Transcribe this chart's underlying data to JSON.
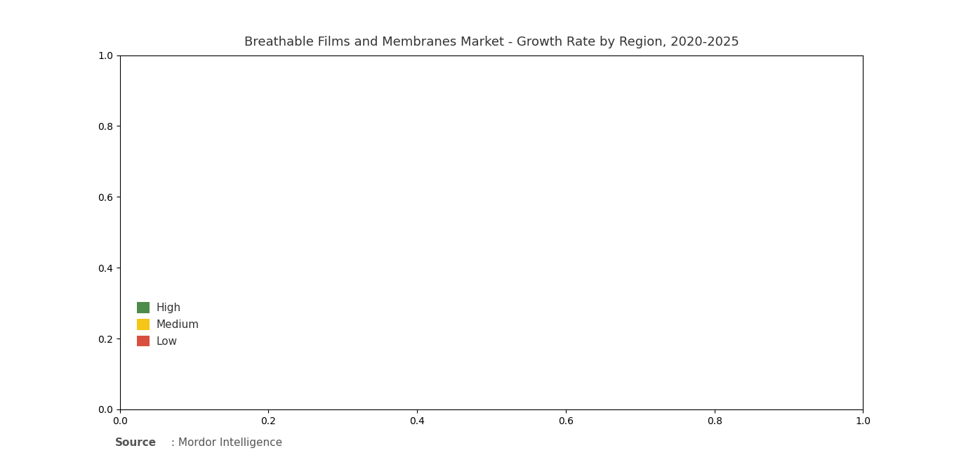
{
  "title": "Breathable Films and Membranes Market - Growth Rate by Region, 2020-2025",
  "title_fontsize": 13,
  "background_color": "#ffffff",
  "legend": {
    "High": "#4d8b4d",
    "Medium": "#f5c518",
    "Low": "#d94f3d"
  },
  "color_map": {
    "High": "#4d8b4d",
    "Medium": "#f5c518",
    "Low": "#d94f3d",
    "Gray": "#aaaaaa",
    "Default": "#e8e8e8"
  },
  "country_colors": {
    "United States of America": "Medium",
    "Canada": "Medium",
    "Mexico": "Medium",
    "Guatemala": "Low",
    "Belize": "Low",
    "Honduras": "Low",
    "El Salvador": "Low",
    "Nicaragua": "Low",
    "Costa Rica": "Low",
    "Panama": "Low",
    "Cuba": "Low",
    "Jamaica": "Low",
    "Haiti": "Low",
    "Dominican Republic": "Low",
    "Puerto Rico": "Low",
    "Colombia": "Low",
    "Venezuela": "Low",
    "Guyana": "Low",
    "Suriname": "Low",
    "French Guiana": "Low",
    "Ecuador": "Low",
    "Peru": "Low",
    "Brazil": "Low",
    "Bolivia": "Low",
    "Paraguay": "Low",
    "Chile": "Low",
    "Argentina": "Low",
    "Uruguay": "Low",
    "Trinidad and Tobago": "Low",
    "Iceland": "Medium",
    "Norway": "Medium",
    "Sweden": "Medium",
    "Finland": "Medium",
    "Denmark": "Medium",
    "United Kingdom": "Medium",
    "Ireland": "Medium",
    "Netherlands": "Medium",
    "Belgium": "Medium",
    "Luxembourg": "Medium",
    "France": "Medium",
    "Spain": "Medium",
    "Portugal": "Medium",
    "Germany": "Medium",
    "Switzerland": "Medium",
    "Austria": "Medium",
    "Italy": "Medium",
    "Greece": "Medium",
    "Cyprus": "Medium",
    "Malta": "Medium",
    "Poland": "Medium",
    "Czech Republic": "Medium",
    "Czechia": "Medium",
    "Slovakia": "Medium",
    "Hungary": "Medium",
    "Slovenia": "Medium",
    "Croatia": "Medium",
    "Bosnia and Herzegovina": "Medium",
    "Bosnia and Herz.": "Medium",
    "Serbia": "Medium",
    "Montenegro": "Medium",
    "Albania": "Medium",
    "North Macedonia": "Medium",
    "Bulgaria": "Medium",
    "Romania": "Medium",
    "Moldova": "Medium",
    "Ukraine": "Medium",
    "Belarus": "Medium",
    "Lithuania": "Medium",
    "Latvia": "Medium",
    "Estonia": "Medium",
    "Russia": "Medium",
    "Kazakhstan": "Medium",
    "Georgia": "Medium",
    "Armenia": "Medium",
    "Azerbaijan": "Medium",
    "Turkey": "Medium",
    "Morocco": "Low",
    "Algeria": "Low",
    "Tunisia": "Low",
    "Libya": "Low",
    "Egypt": "Low",
    "Mauritania": "Low",
    "Mali": "Low",
    "Niger": "Low",
    "Chad": "Low",
    "Sudan": "Low",
    "Ethiopia": "Low",
    "Eritrea": "Low",
    "Djibouti": "Low",
    "Somalia": "Low",
    "Senegal": "Low",
    "Gambia": "Low",
    "Guinea-Bissau": "Low",
    "Guinea": "Low",
    "Sierra Leone": "Low",
    "Liberia": "Low",
    "Ivory Coast": "Low",
    "Côte d'Ivoire": "Low",
    "Ghana": "Low",
    "Togo": "Low",
    "Benin": "Low",
    "Nigeria": "Low",
    "Cameroon": "Low",
    "Equatorial Guinea": "Low",
    "Eq. Guinea": "Low",
    "Gabon": "Low",
    "Republic of Congo": "Low",
    "Congo": "Low",
    "Dem. Rep. Congo": "Low",
    "Democratic Republic of the Congo": "Low",
    "Central African Republic": "Low",
    "Central African Rep.": "Low",
    "South Sudan": "Low",
    "S. Sudan": "Low",
    "Uganda": "Low",
    "Kenya": "Low",
    "Rwanda": "Low",
    "Burundi": "Low",
    "Tanzania": "Low",
    "Mozambique": "Low",
    "Malawi": "Low",
    "Zambia": "Low",
    "Zimbabwe": "Low",
    "Botswana": "Low",
    "Namibia": "Low",
    "South Africa": "Low",
    "Lesotho": "Low",
    "Swaziland": "Low",
    "eSwatini": "Low",
    "Madagascar": "Low",
    "Angola": "Low",
    "Burkina Faso": "Low",
    "W. Sahara": "Low",
    "Western Sahara": "Low",
    "Saudi Arabia": "Low",
    "Yemen": "Low",
    "Oman": "Low",
    "United Arab Emirates": "Low",
    "UAE": "Low",
    "Qatar": "Low",
    "Bahrain": "Low",
    "Kuwait": "Low",
    "Iraq": "Low",
    "Iran": "Low",
    "Syria": "Low",
    "Lebanon": "Low",
    "Israel": "Low",
    "Jordan": "Low",
    "Afghanistan": "Low",
    "Pakistan": "High",
    "India": "High",
    "Nepal": "High",
    "Bhutan": "High",
    "Bangladesh": "High",
    "Sri Lanka": "High",
    "Myanmar": "High",
    "Thailand": "High",
    "Laos": "High",
    "Vietnam": "High",
    "Cambodia": "High",
    "Malaysia": "High",
    "Singapore": "High",
    "Indonesia": "High",
    "Philippines": "High",
    "China": "High",
    "Mongolia": "High",
    "North Korea": "High",
    "South Korea": "High",
    "Japan": "High",
    "Taiwan": "High",
    "Uzbekistan": "Medium",
    "Turkmenistan": "Medium",
    "Kyrgyzstan": "Medium",
    "Tajikistan": "Medium",
    "Australia": "High",
    "New Zealand": "High",
    "Papua New Guinea": "High",
    "Timor-Leste": "High",
    "Solomon Islands": "High",
    "Vanuatu": "High",
    "Fiji": "High",
    "Greenland": "Gray",
    "Falkland Islands": "Low",
    "Falkland Is.": "Low"
  },
  "source_bold": "Source",
  "source_rest": " : Mordor Intelligence",
  "source_fontsize": 11
}
